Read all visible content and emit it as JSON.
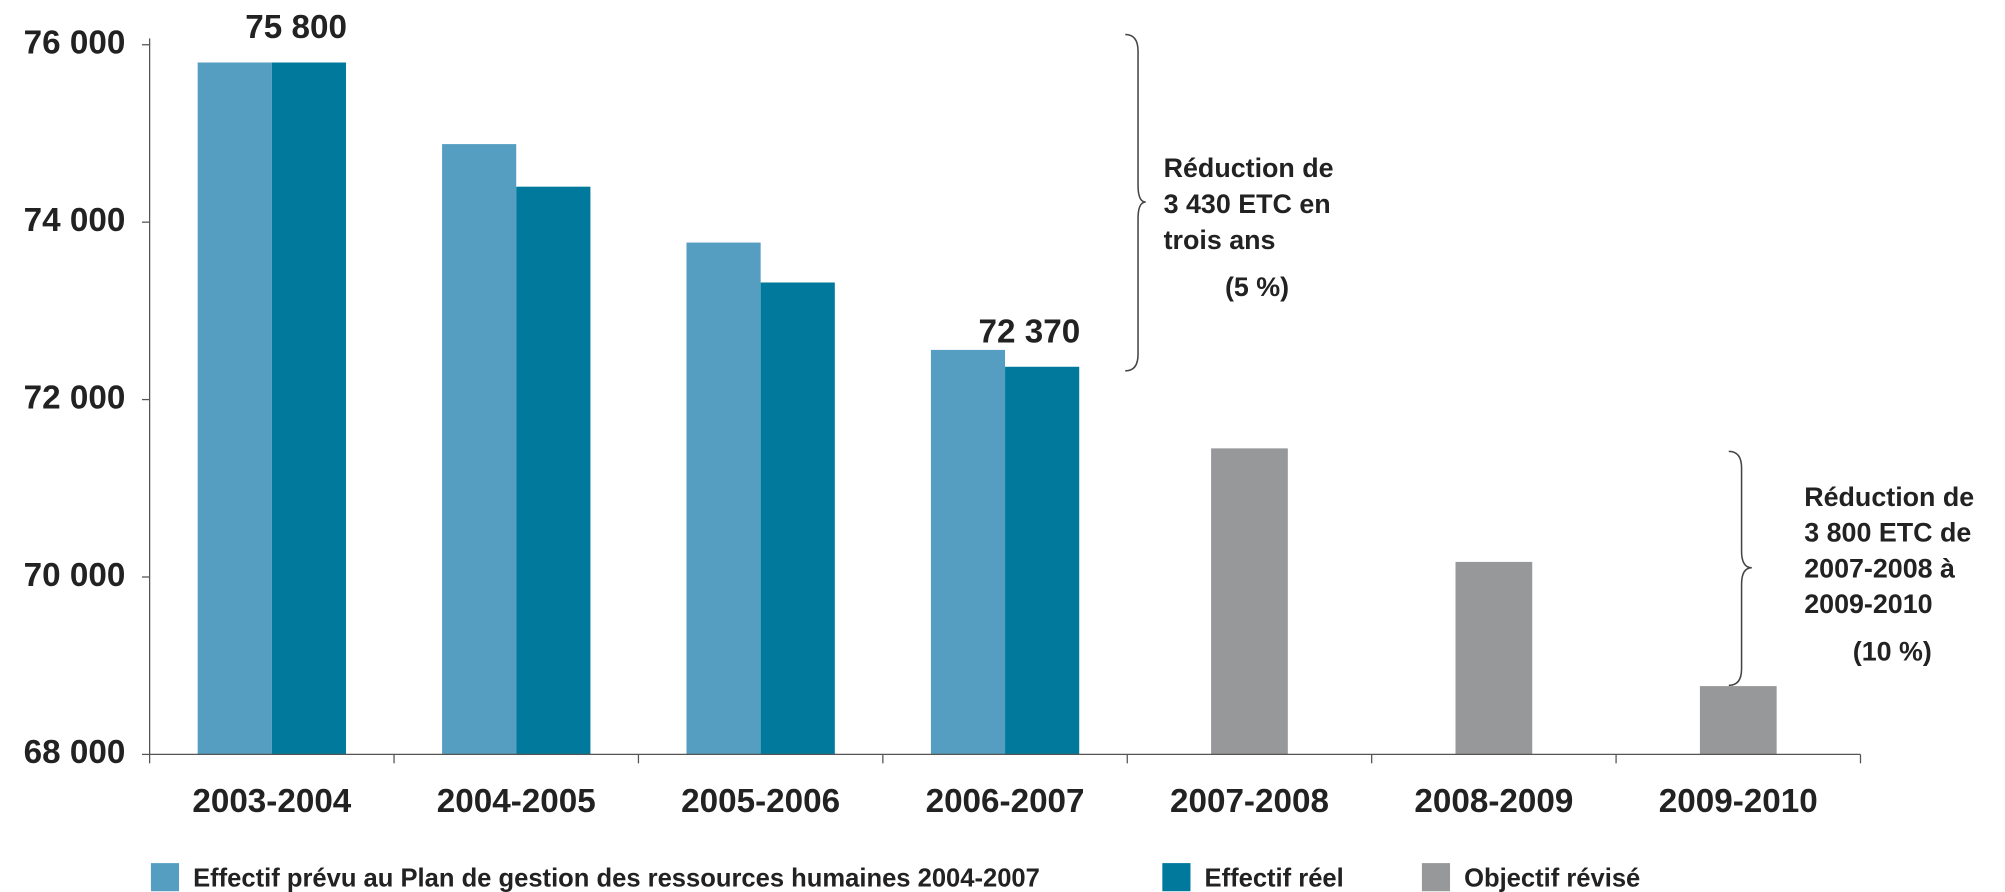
{
  "chart_data": {
    "type": "bar",
    "categories": [
      "2003-2004",
      "2004-2005",
      "2005-2006",
      "2006-2007",
      "2007-2008",
      "2008-2009",
      "2009-2010"
    ],
    "series": [
      {
        "name": "Effectif prévu au Plan de gestion des ressources humaines 2004-2007",
        "color": "#559ec1",
        "values": [
          75800,
          74880,
          73770,
          72560,
          null,
          null,
          null
        ]
      },
      {
        "name": "Effectif réel",
        "color": "#00799c",
        "values": [
          75800,
          74400,
          73320,
          72370,
          null,
          null,
          null
        ],
        "value_labels": [
          "75 800",
          null,
          null,
          "72 370",
          null,
          null,
          null
        ]
      },
      {
        "name": "Objectif révisé",
        "color": "#97989a",
        "values": [
          null,
          null,
          null,
          null,
          71450,
          70170,
          68770
        ]
      }
    ],
    "ylim": [
      68000,
      76000
    ],
    "yticks": [
      {
        "value": 68000,
        "label": "68 000"
      },
      {
        "value": 70000,
        "label": "70 000"
      },
      {
        "value": 72000,
        "label": "72 000"
      },
      {
        "value": 74000,
        "label": "74 000"
      },
      {
        "value": 76000,
        "label": "76 000"
      }
    ],
    "annotations": [
      {
        "lines": [
          "Réduction de",
          "3 430 ETC en",
          "trois ans",
          "(5 %)"
        ]
      },
      {
        "lines": [
          "Réduction de",
          "3 800 ETC de",
          "2007-2008 à",
          "2009-2010",
          "(10 %)"
        ]
      }
    ]
  }
}
